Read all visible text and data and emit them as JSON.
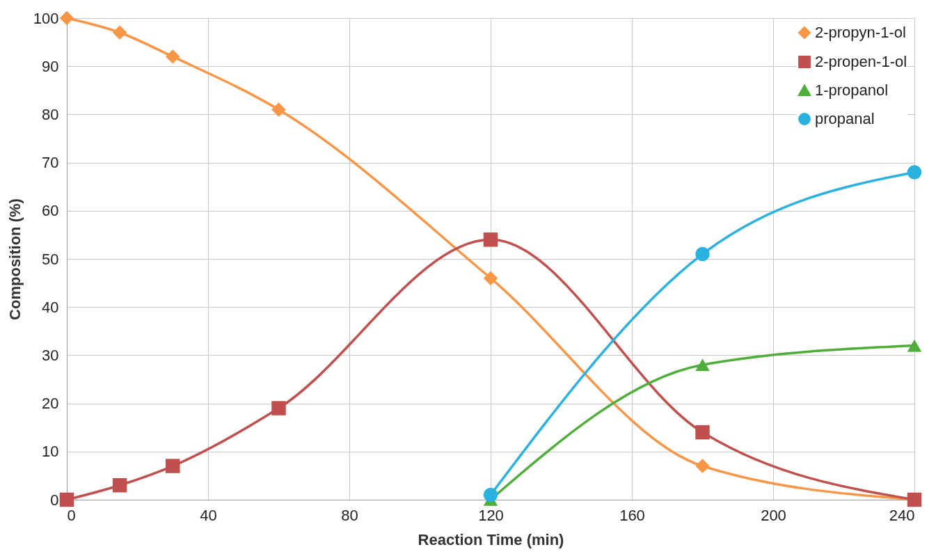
{
  "chart_data": {
    "type": "line",
    "xlabel": "Reaction Time (min)",
    "ylabel": "Composition (%)",
    "xlim": [
      0,
      240
    ],
    "xticks": [
      0,
      40,
      80,
      120,
      160,
      200,
      240
    ],
    "ylim": [
      0,
      100
    ],
    "yticks": [
      0,
      10,
      20,
      30,
      40,
      50,
      60,
      70,
      80,
      90,
      100
    ],
    "grid": true,
    "legend": "top right",
    "line_style": "solid",
    "series": [
      {
        "name": "2-propyn-1-ol",
        "color": "#f79646",
        "marker": "diamond",
        "x": [
          0,
          15,
          30,
          60,
          120,
          180,
          240
        ],
        "values": [
          100,
          97,
          92,
          81,
          46,
          7,
          0
        ]
      },
      {
        "name": "2-propen-1-ol",
        "color": "#c0504d",
        "marker": "square",
        "x": [
          0,
          15,
          30,
          60,
          120,
          180,
          240
        ],
        "values": [
          0,
          3,
          7,
          19,
          54,
          14,
          0
        ]
      },
      {
        "name": "1-propanol",
        "color": "#4fad3a",
        "marker": "triangle",
        "x": [
          120,
          180,
          240
        ],
        "values": [
          0,
          28,
          32
        ]
      },
      {
        "name": "propanal",
        "color": "#2bb1e0",
        "marker": "circle",
        "x": [
          120,
          180,
          240
        ],
        "values": [
          1,
          51,
          68
        ]
      }
    ]
  }
}
